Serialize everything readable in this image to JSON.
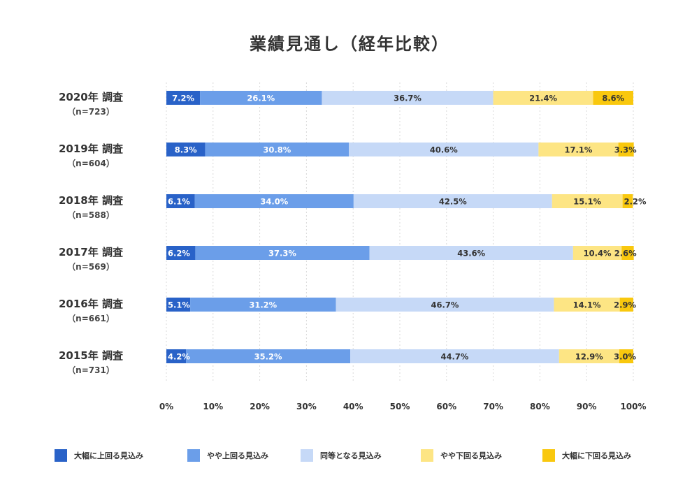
{
  "chart_data": {
    "type": "bar",
    "orientation": "horizontal",
    "stacked": true,
    "title": "業績見通し（経年比較）",
    "categories": [
      {
        "label": "2020年 調査",
        "sub": "（n=723）"
      },
      {
        "label": "2019年 調査",
        "sub": "（n=604）"
      },
      {
        "label": "2018年 調査",
        "sub": "（n=588）"
      },
      {
        "label": "2017年 調査",
        "sub": "（n=569）"
      },
      {
        "label": "2016年 調査",
        "sub": "（n=661）"
      },
      {
        "label": "2015年 調査",
        "sub": "（n=731）"
      }
    ],
    "series": [
      {
        "name": "大幅に上回る見込み",
        "color": "#2962c8",
        "labelColor": "#ffffff",
        "values": [
          7.2,
          8.3,
          6.1,
          6.2,
          5.1,
          4.2
        ]
      },
      {
        "name": "やや上回る見込み",
        "color": "#6b9ee9",
        "labelColor": "#ffffff",
        "values": [
          26.1,
          30.8,
          34.0,
          37.3,
          31.2,
          35.2
        ]
      },
      {
        "name": "同等となる見込み",
        "color": "#c6d9f7",
        "labelColor": "#333333",
        "values": [
          36.7,
          40.6,
          42.5,
          43.6,
          46.7,
          44.7
        ]
      },
      {
        "name": "やや下回る見込み",
        "color": "#fde584",
        "labelColor": "#333333",
        "values": [
          21.4,
          17.1,
          15.1,
          10.4,
          14.1,
          12.9
        ]
      },
      {
        "name": "大幅に下回る見込み",
        "color": "#f9c80e",
        "labelColor": "#333333",
        "values": [
          8.6,
          3.3,
          2.2,
          2.6,
          2.9,
          3.0
        ]
      }
    ],
    "xlim": [
      0,
      100
    ],
    "xticks": [
      "0%",
      "10%",
      "20%",
      "30%",
      "40%",
      "50%",
      "60%",
      "70%",
      "80%",
      "90%",
      "100%"
    ],
    "value_suffix": "%",
    "grid": true,
    "legend_position": "bottom"
  }
}
